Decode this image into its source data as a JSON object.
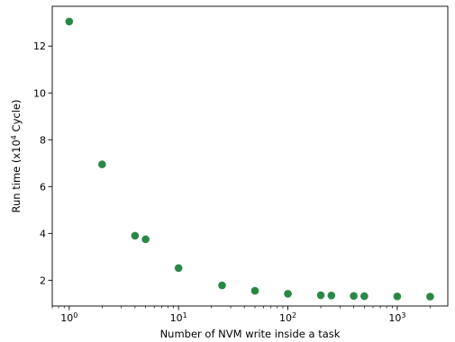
{
  "chart_data": {
    "type": "scatter",
    "xscale": "log",
    "xlabel": "Number of NVM write inside a task",
    "ylabel_parts": {
      "before": "Run time (x10",
      "sup": "4",
      "after": " Cycle)"
    },
    "xlim": [
      0.7,
      2900
    ],
    "ylim": [
      0.9,
      13.7
    ],
    "x_major_ticks": [
      1,
      10,
      100,
      1000
    ],
    "x_major_tick_labels": [
      {
        "base": "10",
        "exp": "0"
      },
      {
        "base": "10",
        "exp": "1"
      },
      {
        "base": "10",
        "exp": "2"
      },
      {
        "base": "10",
        "exp": "3"
      }
    ],
    "y_ticks": [
      2,
      4,
      6,
      8,
      10,
      12
    ],
    "y_tick_labels": [
      "2",
      "4",
      "6",
      "8",
      "10",
      "12"
    ],
    "grid": false,
    "color": "#2a8847",
    "points": [
      {
        "x": 1,
        "y": 13.05
      },
      {
        "x": 2,
        "y": 6.95
      },
      {
        "x": 4,
        "y": 3.9
      },
      {
        "x": 5,
        "y": 3.75
      },
      {
        "x": 10,
        "y": 2.52
      },
      {
        "x": 25,
        "y": 1.78
      },
      {
        "x": 50,
        "y": 1.55
      },
      {
        "x": 100,
        "y": 1.42
      },
      {
        "x": 200,
        "y": 1.36
      },
      {
        "x": 250,
        "y": 1.35
      },
      {
        "x": 400,
        "y": 1.33
      },
      {
        "x": 500,
        "y": 1.32
      },
      {
        "x": 1000,
        "y": 1.31
      },
      {
        "x": 2000,
        "y": 1.3
      }
    ]
  }
}
